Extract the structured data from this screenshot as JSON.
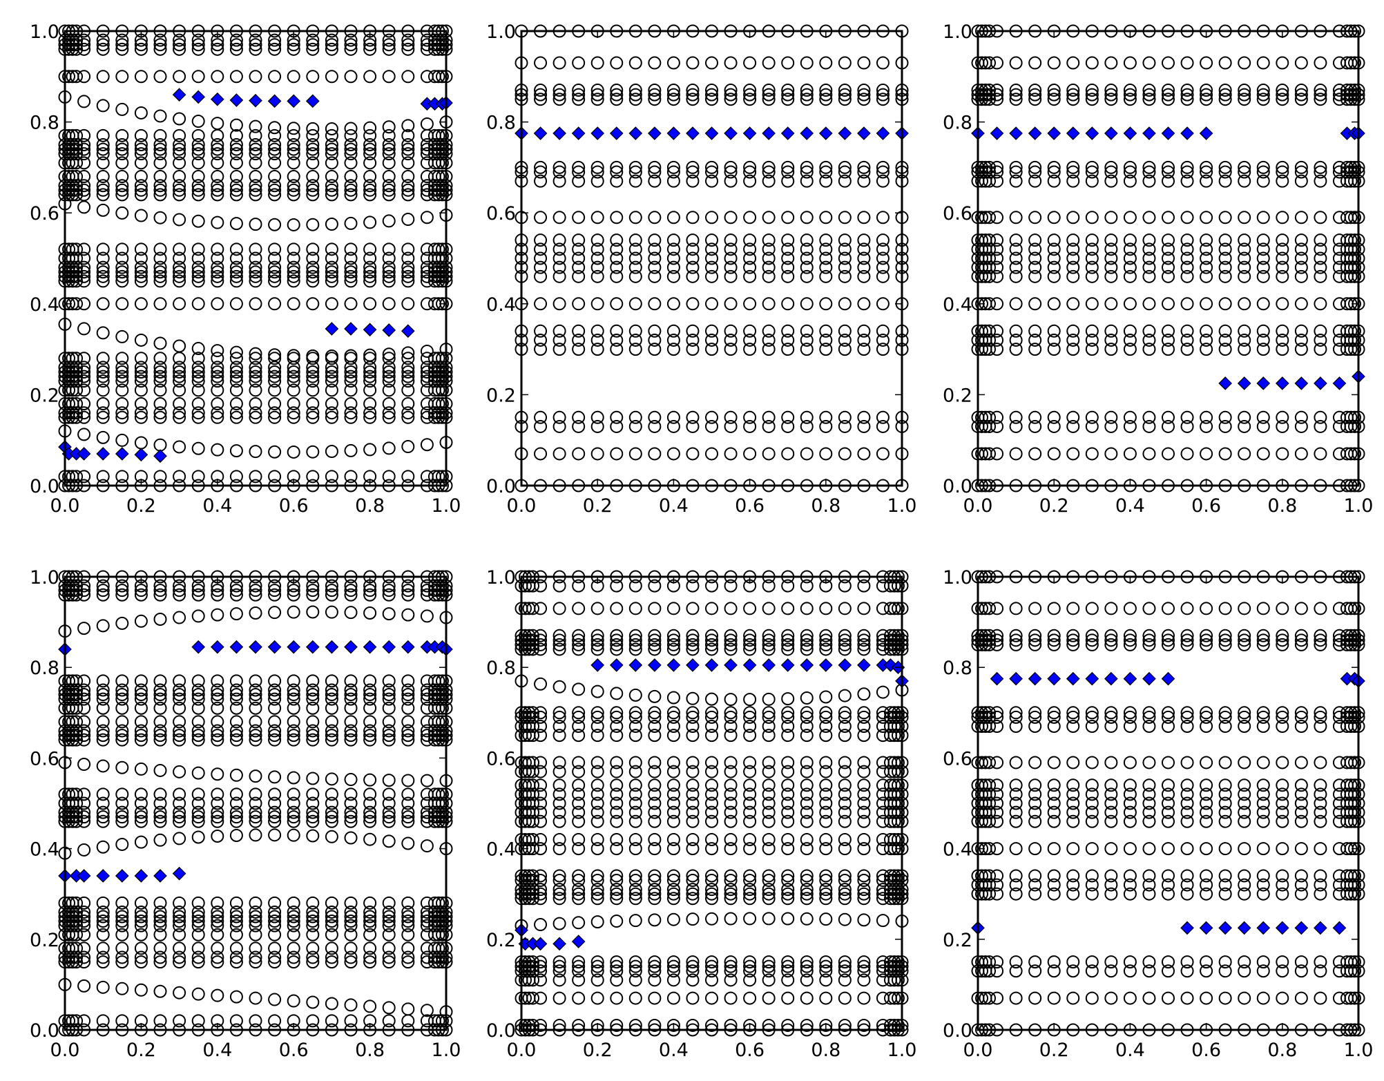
{
  "chart_data": [
    {
      "type": "scatter",
      "title": "",
      "xlabel": "",
      "ylabel": "",
      "xlim": [
        0,
        1
      ],
      "ylim": [
        0,
        1
      ],
      "xticks": [
        "0.0",
        "0.2",
        "0.4",
        "0.6",
        "0.8",
        "1.0"
      ],
      "yticks": [
        "0.0",
        "0.2",
        "0.4",
        "0.6",
        "0.8",
        "1.0"
      ],
      "circle_levels": [
        0.0,
        0.02,
        0.15,
        0.16,
        0.18,
        0.21,
        0.23,
        0.24,
        0.25,
        0.26,
        0.28,
        0.4,
        0.45,
        0.46,
        0.47,
        0.48,
        0.5,
        0.52,
        0.64,
        0.65,
        0.66,
        0.68,
        0.71,
        0.73,
        0.74,
        0.75,
        0.77,
        0.9,
        0.96,
        0.97,
        0.98,
        1.0
      ],
      "circle_curves": [
        [
          0.12,
          0.075,
          0.095
        ],
        [
          0.355,
          0.29,
          0.3
        ],
        [
          0.62,
          0.575,
          0.595
        ],
        [
          0.855,
          0.79,
          0.8
        ]
      ],
      "edge_clutter": true,
      "diamonds": [
        [
          0.0,
          0.085
        ],
        [
          0.01,
          0.07
        ],
        [
          0.03,
          0.07
        ],
        [
          0.05,
          0.07
        ],
        [
          0.1,
          0.07
        ],
        [
          0.15,
          0.07
        ],
        [
          0.2,
          0.068
        ],
        [
          0.25,
          0.065
        ],
        [
          0.3,
          0.86
        ],
        [
          0.35,
          0.855
        ],
        [
          0.4,
          0.85
        ],
        [
          0.45,
          0.848
        ],
        [
          0.5,
          0.847
        ],
        [
          0.55,
          0.846
        ],
        [
          0.6,
          0.846
        ],
        [
          0.65,
          0.846
        ],
        [
          0.7,
          0.345
        ],
        [
          0.75,
          0.345
        ],
        [
          0.8,
          0.343
        ],
        [
          0.85,
          0.342
        ],
        [
          0.9,
          0.34
        ],
        [
          0.95,
          0.84
        ],
        [
          0.97,
          0.84
        ],
        [
          0.99,
          0.84
        ],
        [
          1.0,
          0.842
        ]
      ]
    },
    {
      "type": "scatter",
      "title": "",
      "xlabel": "",
      "ylabel": "",
      "xlim": [
        0,
        1
      ],
      "ylim": [
        0,
        1
      ],
      "xticks": [
        "0.0",
        "0.2",
        "0.4",
        "0.6",
        "0.8",
        "1.0"
      ],
      "yticks": [
        "0.0",
        "0.2",
        "0.4",
        "0.6",
        "0.8",
        "1.0"
      ],
      "circle_levels": [
        0.0,
        0.07,
        0.13,
        0.15,
        0.3,
        0.32,
        0.34,
        0.4,
        0.46,
        0.48,
        0.5,
        0.52,
        0.54,
        0.59,
        0.67,
        0.69,
        0.7,
        0.85,
        0.86,
        0.87,
        0.93,
        1.0
      ],
      "circle_curves": [],
      "edge_clutter": false,
      "diamonds": [
        [
          0.0,
          0.775
        ],
        [
          0.05,
          0.775
        ],
        [
          0.1,
          0.775
        ],
        [
          0.15,
          0.775
        ],
        [
          0.2,
          0.775
        ],
        [
          0.25,
          0.775
        ],
        [
          0.3,
          0.775
        ],
        [
          0.35,
          0.775
        ],
        [
          0.4,
          0.775
        ],
        [
          0.45,
          0.775
        ],
        [
          0.5,
          0.775
        ],
        [
          0.55,
          0.775
        ],
        [
          0.6,
          0.775
        ],
        [
          0.65,
          0.775
        ],
        [
          0.7,
          0.775
        ],
        [
          0.75,
          0.775
        ],
        [
          0.8,
          0.775
        ],
        [
          0.85,
          0.775
        ],
        [
          0.9,
          0.775
        ],
        [
          0.95,
          0.775
        ],
        [
          1.0,
          0.775
        ]
      ]
    },
    {
      "type": "scatter",
      "title": "",
      "xlabel": "",
      "ylabel": "",
      "xlim": [
        0,
        1
      ],
      "ylim": [
        0,
        1
      ],
      "xticks": [
        "0.0",
        "0.2",
        "0.4",
        "0.6",
        "0.8",
        "1.0"
      ],
      "yticks": [
        "0.0",
        "0.2",
        "0.4",
        "0.6",
        "0.8",
        "1.0"
      ],
      "circle_levels": [
        0.0,
        0.07,
        0.13,
        0.15,
        0.3,
        0.32,
        0.34,
        0.4,
        0.46,
        0.48,
        0.5,
        0.52,
        0.54,
        0.59,
        0.67,
        0.69,
        0.7,
        0.85,
        0.86,
        0.87,
        0.93,
        1.0
      ],
      "circle_curves": [],
      "edge_clutter": true,
      "diamonds": [
        [
          0.0,
          0.775
        ],
        [
          0.05,
          0.775
        ],
        [
          0.1,
          0.775
        ],
        [
          0.15,
          0.775
        ],
        [
          0.2,
          0.775
        ],
        [
          0.25,
          0.775
        ],
        [
          0.3,
          0.775
        ],
        [
          0.35,
          0.775
        ],
        [
          0.4,
          0.775
        ],
        [
          0.45,
          0.775
        ],
        [
          0.5,
          0.775
        ],
        [
          0.55,
          0.775
        ],
        [
          0.6,
          0.775
        ],
        [
          0.97,
          0.775
        ],
        [
          0.99,
          0.775
        ],
        [
          1.0,
          0.775
        ],
        [
          0.65,
          0.225
        ],
        [
          0.7,
          0.225
        ],
        [
          0.75,
          0.225
        ],
        [
          0.8,
          0.225
        ],
        [
          0.85,
          0.225
        ],
        [
          0.9,
          0.225
        ],
        [
          0.95,
          0.225
        ],
        [
          1.0,
          0.24
        ]
      ]
    },
    {
      "type": "scatter",
      "title": "",
      "xlabel": "",
      "ylabel": "",
      "xlim": [
        0,
        1
      ],
      "ylim": [
        0,
        1
      ],
      "xticks": [
        "0.0",
        "0.2",
        "0.4",
        "0.6",
        "0.8",
        "1.0"
      ],
      "yticks": [
        "0.0",
        "0.2",
        "0.4",
        "0.6",
        "0.8",
        "1.0"
      ],
      "circle_levels": [
        0.0,
        0.02,
        0.15,
        0.16,
        0.18,
        0.21,
        0.23,
        0.24,
        0.25,
        0.26,
        0.28,
        0.46,
        0.47,
        0.48,
        0.5,
        0.52,
        0.64,
        0.65,
        0.66,
        0.68,
        0.71,
        0.73,
        0.74,
        0.75,
        0.77,
        0.96,
        0.97,
        0.98,
        1.0
      ],
      "circle_curves": [
        [
          0.1,
          0.07,
          0.04
        ],
        [
          0.39,
          0.43,
          0.4
        ],
        [
          0.59,
          0.56,
          0.55
        ],
        [
          0.88,
          0.92,
          0.91
        ]
      ],
      "edge_clutter": true,
      "diamonds": [
        [
          0.0,
          0.84
        ],
        [
          0.0,
          0.34
        ],
        [
          0.03,
          0.34
        ],
        [
          0.05,
          0.34
        ],
        [
          0.1,
          0.34
        ],
        [
          0.15,
          0.34
        ],
        [
          0.2,
          0.34
        ],
        [
          0.25,
          0.34
        ],
        [
          0.3,
          0.345
        ],
        [
          0.35,
          0.845
        ],
        [
          0.4,
          0.845
        ],
        [
          0.45,
          0.845
        ],
        [
          0.5,
          0.845
        ],
        [
          0.55,
          0.845
        ],
        [
          0.6,
          0.845
        ],
        [
          0.65,
          0.845
        ],
        [
          0.7,
          0.845
        ],
        [
          0.75,
          0.845
        ],
        [
          0.8,
          0.845
        ],
        [
          0.85,
          0.845
        ],
        [
          0.9,
          0.845
        ],
        [
          0.95,
          0.845
        ],
        [
          0.97,
          0.845
        ],
        [
          0.99,
          0.845
        ],
        [
          1.0,
          0.84
        ]
      ]
    },
    {
      "type": "scatter",
      "title": "",
      "xlabel": "",
      "ylabel": "",
      "xlim": [
        0,
        1
      ],
      "ylim": [
        0,
        1
      ],
      "xticks": [
        "0.0",
        "0.2",
        "0.4",
        "0.6",
        "0.8",
        "1.0"
      ],
      "yticks": [
        "0.0",
        "0.2",
        "0.4",
        "0.6",
        "0.8",
        "1.0"
      ],
      "circle_levels": [
        0.0,
        0.01,
        0.07,
        0.11,
        0.13,
        0.14,
        0.15,
        0.29,
        0.3,
        0.31,
        0.33,
        0.34,
        0.4,
        0.42,
        0.46,
        0.48,
        0.5,
        0.52,
        0.54,
        0.57,
        0.59,
        0.65,
        0.67,
        0.69,
        0.7,
        0.84,
        0.85,
        0.86,
        0.87,
        0.93,
        0.98,
        1.0
      ],
      "circle_curves": [
        [
          0.77,
          0.73,
          0.75
        ],
        [
          0.23,
          0.245,
          0.24
        ]
      ],
      "edge_clutter": true,
      "diamonds": [
        [
          0.0,
          0.22
        ],
        [
          0.01,
          0.19
        ],
        [
          0.03,
          0.19
        ],
        [
          0.05,
          0.19
        ],
        [
          0.1,
          0.19
        ],
        [
          0.15,
          0.195
        ],
        [
          0.2,
          0.805
        ],
        [
          0.25,
          0.805
        ],
        [
          0.3,
          0.805
        ],
        [
          0.35,
          0.805
        ],
        [
          0.4,
          0.805
        ],
        [
          0.45,
          0.805
        ],
        [
          0.5,
          0.805
        ],
        [
          0.55,
          0.805
        ],
        [
          0.6,
          0.805
        ],
        [
          0.65,
          0.805
        ],
        [
          0.7,
          0.805
        ],
        [
          0.75,
          0.805
        ],
        [
          0.8,
          0.805
        ],
        [
          0.85,
          0.805
        ],
        [
          0.9,
          0.805
        ],
        [
          0.95,
          0.805
        ],
        [
          0.97,
          0.805
        ],
        [
          0.99,
          0.8
        ],
        [
          1.0,
          0.77
        ]
      ]
    },
    {
      "type": "scatter",
      "title": "",
      "xlabel": "",
      "ylabel": "",
      "xlim": [
        0,
        1
      ],
      "ylim": [
        0,
        1
      ],
      "xticks": [
        "0.0",
        "0.2",
        "0.4",
        "0.6",
        "0.8",
        "1.0"
      ],
      "yticks": [
        "0.0",
        "0.2",
        "0.4",
        "0.6",
        "0.8",
        "1.0"
      ],
      "circle_levels": [
        0.0,
        0.07,
        0.13,
        0.15,
        0.3,
        0.32,
        0.34,
        0.4,
        0.46,
        0.48,
        0.5,
        0.52,
        0.54,
        0.59,
        0.67,
        0.69,
        0.7,
        0.85,
        0.86,
        0.87,
        0.93,
        1.0
      ],
      "circle_curves": [],
      "edge_clutter": true,
      "diamonds": [
        [
          0.05,
          0.775
        ],
        [
          0.1,
          0.775
        ],
        [
          0.15,
          0.775
        ],
        [
          0.2,
          0.775
        ],
        [
          0.25,
          0.775
        ],
        [
          0.3,
          0.775
        ],
        [
          0.35,
          0.775
        ],
        [
          0.4,
          0.775
        ],
        [
          0.45,
          0.775
        ],
        [
          0.5,
          0.775
        ],
        [
          0.97,
          0.775
        ],
        [
          0.99,
          0.775
        ],
        [
          1.0,
          0.77
        ],
        [
          0.0,
          0.225
        ],
        [
          0.55,
          0.225
        ],
        [
          0.6,
          0.225
        ],
        [
          0.65,
          0.225
        ],
        [
          0.7,
          0.225
        ],
        [
          0.75,
          0.225
        ],
        [
          0.8,
          0.225
        ],
        [
          0.85,
          0.225
        ],
        [
          0.9,
          0.225
        ],
        [
          0.95,
          0.225
        ]
      ]
    }
  ],
  "colors": {
    "diamond": "#0000ff",
    "circle_edge": "#000000",
    "axes": "#000000"
  }
}
